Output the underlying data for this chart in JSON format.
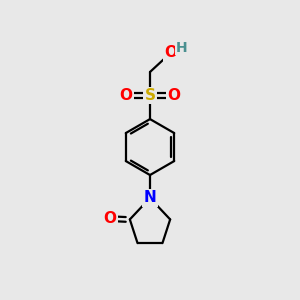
{
  "bg_color": "#e8e8e8",
  "bond_color": "#000000",
  "atom_colors": {
    "O": "#ff0000",
    "S": "#ccaa00",
    "N": "#0000ff",
    "H": "#4a9090",
    "C": "#000000"
  },
  "figsize": [
    3.0,
    3.0
  ],
  "dpi": 100
}
